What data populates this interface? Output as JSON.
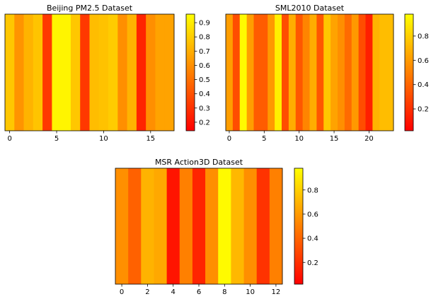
{
  "colors": {
    "colormap": "autumn",
    "low": "#ff0000",
    "high": "#ffff00"
  },
  "chart_data": [
    {
      "type": "heatmap",
      "title": "Beijing PM2.5 Dataset",
      "xlabel": "",
      "ylabel": "",
      "x": [
        0,
        1,
        2,
        3,
        4,
        5,
        6,
        7,
        8,
        9,
        10,
        11,
        12,
        13,
        14,
        15,
        16,
        17
      ],
      "values": [
        0.78,
        0.58,
        0.7,
        0.77,
        0.22,
        0.96,
        0.96,
        0.78,
        0.22,
        0.74,
        0.76,
        0.8,
        0.56,
        0.7,
        0.14,
        0.56,
        0.64,
        0.64
      ],
      "xticks": [
        0,
        5,
        10,
        15
      ],
      "xlim": [
        -0.5,
        17.5
      ],
      "colorbar": {
        "ticks": [
          0.2,
          0.3,
          0.4,
          0.5,
          0.6,
          0.7,
          0.8,
          0.9
        ],
        "range": [
          0.14,
          0.96
        ]
      }
    },
    {
      "type": "heatmap",
      "title": "SML2010 Dataset",
      "xlabel": "",
      "ylabel": "",
      "x": [
        0,
        1,
        2,
        3,
        4,
        5,
        6,
        7,
        8,
        9,
        10,
        11,
        12,
        13,
        14,
        15,
        16,
        17,
        18,
        19,
        20,
        21,
        22,
        23
      ],
      "values": [
        0.62,
        0.3,
        0.98,
        0.62,
        0.36,
        0.36,
        0.6,
        0.94,
        0.3,
        0.68,
        0.34,
        0.52,
        0.68,
        0.34,
        0.78,
        0.64,
        0.56,
        0.42,
        0.6,
        0.3,
        0.12,
        0.7,
        0.74,
        0.74
      ],
      "xticks": [
        0,
        5,
        10,
        15,
        20
      ],
      "xlim": [
        -0.5,
        23.5
      ],
      "colorbar": {
        "ticks": [
          0.2,
          0.4,
          0.6,
          0.8
        ],
        "range": [
          0.02,
          0.98
        ]
      }
    },
    {
      "type": "heatmap",
      "title": "MSR Action3D Dataset",
      "xlabel": "",
      "ylabel": "",
      "x": [
        0,
        1,
        2,
        3,
        4,
        5,
        6,
        7,
        8,
        9,
        10,
        11,
        12
      ],
      "values": [
        0.56,
        0.38,
        0.7,
        0.66,
        0.08,
        0.5,
        0.14,
        0.56,
        0.98,
        0.72,
        0.56,
        0.2,
        0.5
      ],
      "xticks": [
        0,
        2,
        4,
        6,
        8,
        10,
        12
      ],
      "xlim": [
        -0.5,
        12.5
      ],
      "colorbar": {
        "ticks": [
          0.2,
          0.4,
          0.6,
          0.8
        ],
        "range": [
          0.02,
          0.98
        ]
      }
    }
  ]
}
